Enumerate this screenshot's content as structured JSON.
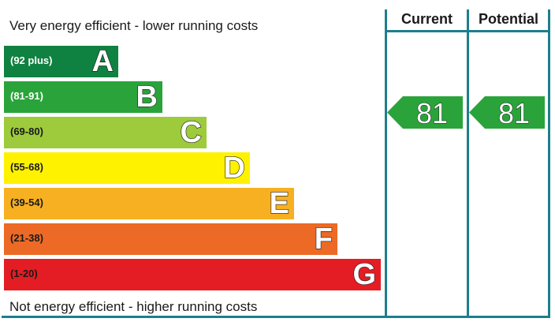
{
  "chart_data": {
    "type": "bar",
    "top_caption": "Very energy efficient - lower running costs",
    "bottom_caption": "Not energy efficient - higher running costs",
    "bands": [
      {
        "letter": "A",
        "range": "(92 plus)",
        "color": "#0f8140",
        "text_color": "#ffffff"
      },
      {
        "letter": "B",
        "range": "(81-91)",
        "color": "#2aa43a",
        "text_color": "#ffffff"
      },
      {
        "letter": "C",
        "range": "(69-80)",
        "color": "#9dcb3c",
        "text_color": "#1a1a1a"
      },
      {
        "letter": "D",
        "range": "(55-68)",
        "color": "#fff200",
        "text_color": "#1a1a1a"
      },
      {
        "letter": "E",
        "range": "(39-54)",
        "color": "#f7b022",
        "text_color": "#1a1a1a"
      },
      {
        "letter": "F",
        "range": "(21-38)",
        "color": "#ec6a25",
        "text_color": "#1a1a1a"
      },
      {
        "letter": "G",
        "range": "(1-20)",
        "color": "#e31d23",
        "text_color": "#1a1a1a"
      }
    ],
    "columns": [
      {
        "label": "Current",
        "value": 81,
        "band": "B"
      },
      {
        "label": "Potential",
        "value": 81,
        "band": "B"
      }
    ],
    "accent_color": "#1d7f8c",
    "marker_color": "#2aa43a"
  }
}
